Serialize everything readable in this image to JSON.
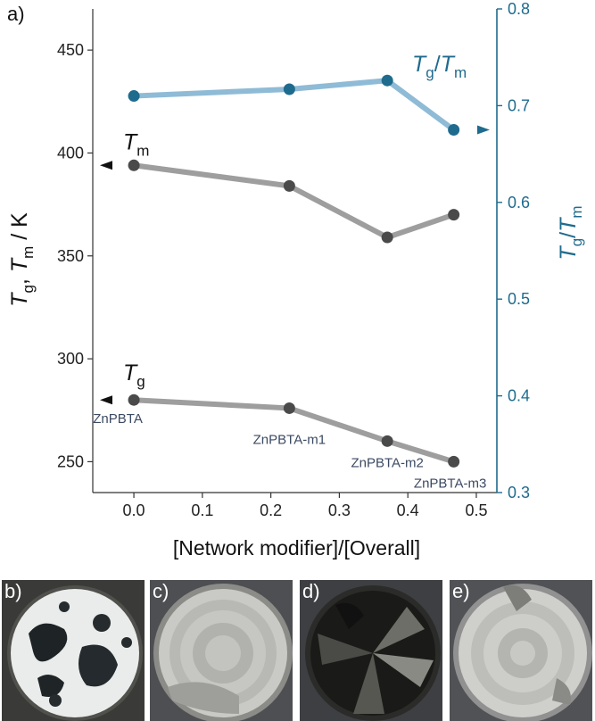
{
  "panel_label": "a)",
  "chart_data": {
    "type": "line",
    "xlabel": "[Network modifier]/[Overall]",
    "x_ticks": [
      "0.0",
      "0.1",
      "0.2",
      "0.3",
      "0.4",
      "0.5"
    ],
    "xlim": [
      -0.06,
      0.53
    ],
    "left_axis": {
      "label_parts": [
        "T",
        "g",
        ", ",
        "T",
        "m",
        " / K"
      ],
      "ylim": [
        235,
        470
      ],
      "ticks": [
        "250",
        "300",
        "350",
        "400",
        "450"
      ]
    },
    "right_axis": {
      "label_parts": [
        "T",
        "g",
        "/",
        "T",
        "m"
      ],
      "ylim": [
        0.3,
        0.8
      ],
      "ticks": [
        "0.3",
        "0.4",
        "0.5",
        "0.6",
        "0.7",
        "0.8"
      ],
      "color": "#1f6b8e"
    },
    "series": [
      {
        "name_parts": [
          "T",
          "m"
        ],
        "axis": "left",
        "color": "#9e9e9e",
        "marker_color": "#4a4a4a",
        "x": [
          0.0,
          0.227,
          0.37,
          0.467
        ],
        "y": [
          394,
          384,
          359,
          370
        ]
      },
      {
        "name_parts": [
          "T",
          "g"
        ],
        "axis": "left",
        "color": "#9e9e9e",
        "marker_color": "#4a4a4a",
        "x": [
          0.0,
          0.227,
          0.37,
          0.467
        ],
        "y": [
          280,
          276,
          260,
          250
        ]
      },
      {
        "name_parts": [
          "T",
          "g",
          "/",
          "T",
          "m"
        ],
        "axis": "right",
        "color": "#8fbbd6",
        "marker_color": "#1f6b8e",
        "x": [
          0.0,
          0.227,
          0.37,
          0.467
        ],
        "y": [
          0.71,
          0.717,
          0.726,
          0.675
        ]
      }
    ],
    "point_labels": [
      "ZnPBTA",
      "ZnPBTA-m1",
      "ZnPBTA-m2",
      "ZnPBTA-m3"
    ]
  },
  "photos": [
    {
      "label": "b)",
      "color": "#2a2a2a"
    },
    {
      "label": "c)",
      "color": "#9a9a95"
    },
    {
      "label": "d)",
      "color": "#1c1c1c"
    },
    {
      "label": "e)",
      "color": "#a8a8a4"
    }
  ]
}
